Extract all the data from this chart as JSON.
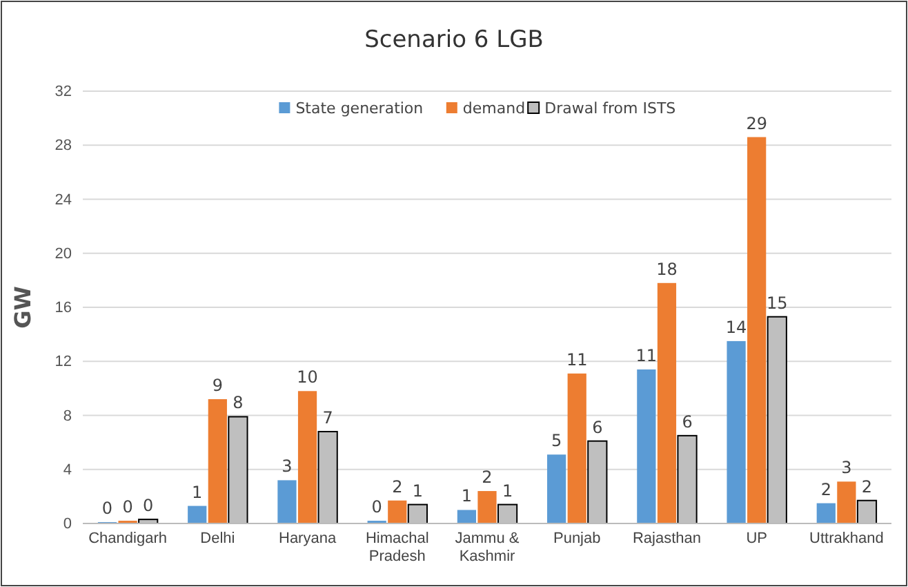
{
  "chart_data": {
    "type": "bar",
    "title": "Scenario 6 LGB",
    "ylabel": "GW",
    "categories": [
      "Chandigarh",
      "Delhi",
      "Haryana",
      "Himachal Pradesh",
      "Jammu & Kashmir",
      "Punjab",
      "Rajasthan",
      "UP",
      "Uttrakhand"
    ],
    "series": [
      {
        "name": "State generation",
        "color": "#5b9bd5",
        "values": [
          0.1,
          1.3,
          3.2,
          0.2,
          1.0,
          5.1,
          11.4,
          13.5,
          1.5
        ],
        "value_labels": [
          "0",
          "1",
          "3",
          "0",
          "1",
          "5",
          "11",
          "14",
          "2"
        ]
      },
      {
        "name": "demand",
        "color": "#ed7d31",
        "values": [
          0.2,
          9.2,
          9.8,
          1.7,
          2.4,
          11.1,
          17.8,
          28.6,
          3.1
        ],
        "value_labels": [
          "0",
          "9",
          "10",
          "2",
          "2",
          "11",
          "18",
          "29",
          "3"
        ]
      },
      {
        "name": "Drawal from ISTS",
        "color": "#bfbfbf",
        "values": [
          0.3,
          7.9,
          6.8,
          1.4,
          1.4,
          6.1,
          6.5,
          15.3,
          1.7
        ],
        "value_labels": [
          "0",
          "8",
          "7",
          "1",
          "1",
          "6",
          "6",
          "15",
          "2"
        ]
      }
    ],
    "ylim": [
      0,
      32
    ],
    "yticks": [
      0,
      4,
      8,
      12,
      16,
      20,
      24,
      28,
      32
    ],
    "grid": "y",
    "legend": "top"
  }
}
